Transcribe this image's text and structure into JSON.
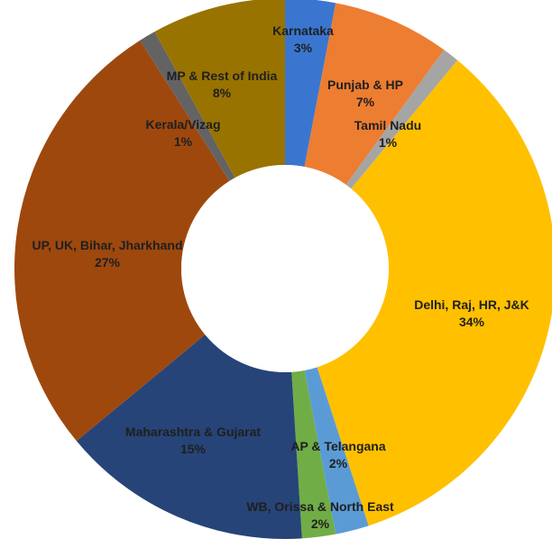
{
  "chart_data": {
    "type": "pie",
    "variant": "donut",
    "legend": "none",
    "slices": [
      {
        "name": "Karnataka",
        "value": 3,
        "label": "3%",
        "color": "#3a76d0"
      },
      {
        "name": "Punjab & HP",
        "value": 7,
        "label": "7%",
        "color": "#ed7d31"
      },
      {
        "name": "Tamil Nadu",
        "value": 1,
        "label": "1%",
        "color": "#a5a5a5"
      },
      {
        "name": "Delhi, Raj, HR, J&K",
        "value": 34,
        "label": "34%",
        "color": "#ffc000"
      },
      {
        "name": "AP & Telangana",
        "value": 2,
        "label": "2%",
        "color": "#5b9bd5"
      },
      {
        "name": "WB, Orissa & North East",
        "value": 2,
        "label": "2%",
        "color": "#70ad47"
      },
      {
        "name": "Maharashtra & Gujarat",
        "value": 15,
        "label": "15%",
        "color": "#264478"
      },
      {
        "name": "UP, UK, Bihar, Jharkhand",
        "value": 27,
        "label": "27%",
        "color": "#9e480e"
      },
      {
        "name": "Kerala/Vizag",
        "value": 1,
        "label": "1%",
        "color": "#636363"
      },
      {
        "name": "MP & Rest of India",
        "value": 8,
        "label": "8%",
        "color": "#997300"
      }
    ]
  }
}
